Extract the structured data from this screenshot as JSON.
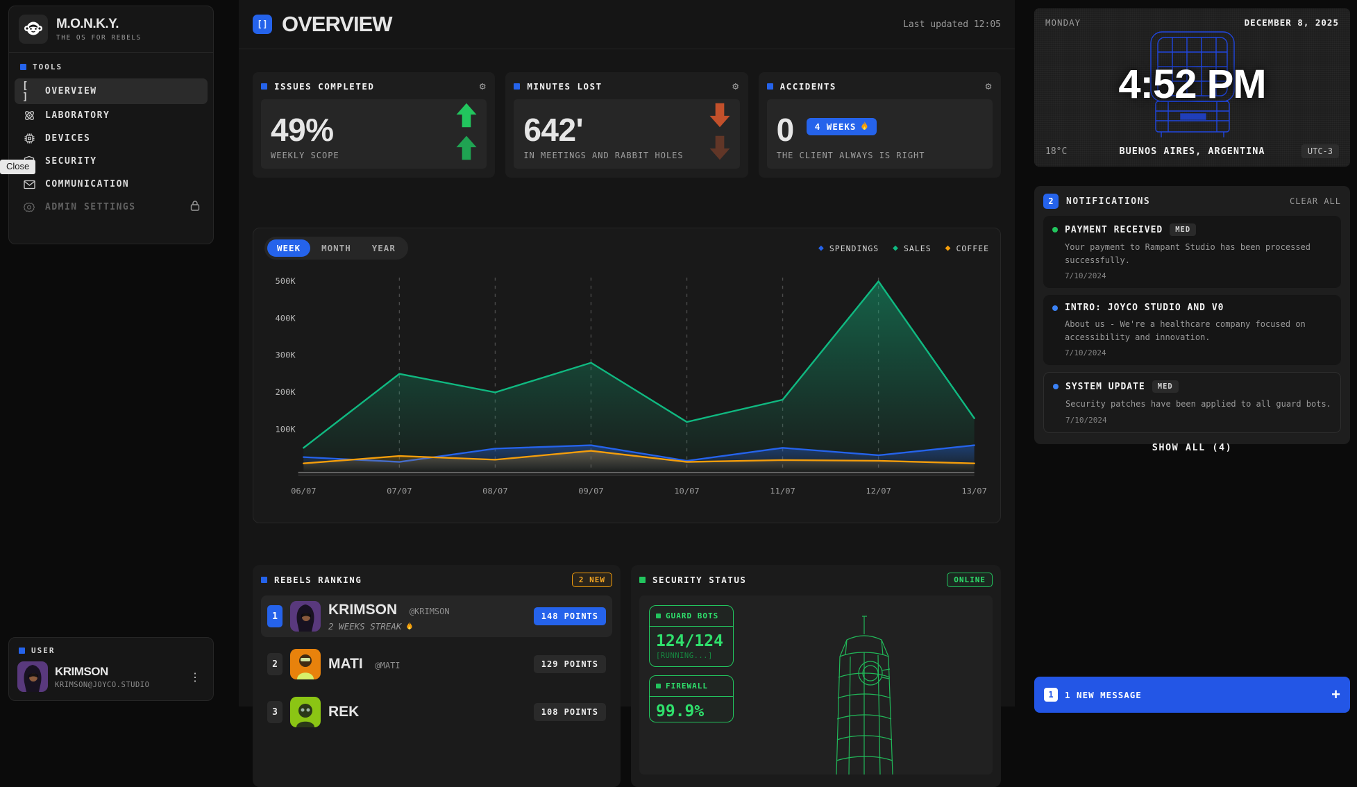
{
  "sidebar": {
    "logo": {
      "title": "M.O.N.K.Y.",
      "subtitle": "THE OS FOR REBELS"
    },
    "tools_label": "TOOLS",
    "items": [
      {
        "label": "OVERVIEW"
      },
      {
        "label": "LABORATORY"
      },
      {
        "label": "DEVICES"
      },
      {
        "label": "SECURITY"
      },
      {
        "label": "COMMUNICATION"
      },
      {
        "label": "ADMIN SETTINGS"
      }
    ],
    "tooltip": "Close",
    "user": {
      "label": "USER",
      "name": "KRIMSON",
      "email": "KRIMSON@JOYCO.STUDIO"
    }
  },
  "header": {
    "title": "OVERVIEW",
    "icon": "[]",
    "last_updated": "Last updated 12:05"
  },
  "stats": [
    {
      "title": "ISSUES COMPLETED",
      "value": "49%",
      "subtitle": "WEEKLY SCOPE"
    },
    {
      "title": "MINUTES LOST",
      "value": "642'",
      "subtitle": "IN MEETINGS AND RABBIT HOLES"
    },
    {
      "title": "ACCIDENTS",
      "value": "0",
      "badge": "4 WEEKS",
      "subtitle": "THE CLIENT ALWAYS IS RIGHT"
    }
  ],
  "chart": {
    "tabs": [
      "WEEK",
      "MONTH",
      "YEAR"
    ],
    "active_tab": "WEEK",
    "legend": [
      {
        "label": "SPENDINGS",
        "color": "#2563eb"
      },
      {
        "label": "SALES",
        "color": "#10b981"
      },
      {
        "label": "COFFEE",
        "color": "#f59e0b"
      }
    ]
  },
  "chart_data": {
    "type": "area",
    "title": "",
    "x": [
      "06/07",
      "07/07",
      "08/07",
      "09/07",
      "10/07",
      "11/07",
      "12/07",
      "13/07"
    ],
    "series": [
      {
        "name": "SALES",
        "color": "#10b981",
        "area_opacity": 0.45,
        "values": [
          50000,
          250000,
          200000,
          280000,
          120000,
          180000,
          500000,
          130000
        ]
      },
      {
        "name": "SPENDINGS",
        "color": "#2563eb",
        "area_opacity": 0.4,
        "values": [
          25000,
          12000,
          48000,
          57000,
          15000,
          50000,
          30000,
          57000
        ]
      },
      {
        "name": "COFFEE",
        "color": "#f59e0b",
        "area_opacity": 0.3,
        "values": [
          8000,
          28000,
          18000,
          42000,
          12000,
          17000,
          15000,
          8000
        ]
      }
    ],
    "ylim": [
      0,
      500000
    ],
    "yticks": [
      {
        "label": "100K",
        "value": 100000
      },
      {
        "label": "200K",
        "value": 200000
      },
      {
        "label": "300K",
        "value": 300000
      },
      {
        "label": "400K",
        "value": 400000
      },
      {
        "label": "500K",
        "value": 500000
      }
    ],
    "grid": "vertical-dashed",
    "legend_position": "top-right"
  },
  "ranking": {
    "title": "REBELS RANKING",
    "badge": "2 NEW",
    "rows": [
      {
        "rank": "1",
        "name": "KRIMSON",
        "handle": "@KRIMSON",
        "streak": "2 WEEKS STREAK",
        "points": "148 POINTS",
        "avatar_color": "#59397d"
      },
      {
        "rank": "2",
        "name": "MATI",
        "handle": "@MATI",
        "points": "129 POINTS",
        "avatar_color": "#e8820c"
      },
      {
        "rank": "3",
        "name": "REK",
        "points": "108 POINTS",
        "avatar_color": "#8bc514"
      }
    ]
  },
  "security": {
    "title": "SECURITY STATUS",
    "badge": "ONLINE",
    "panels": [
      {
        "label": "GUARD BOTS",
        "value": "124/124",
        "note": "[RUNNING...]"
      },
      {
        "label": "FIREWALL",
        "value": "99.9%",
        "note": ""
      }
    ]
  },
  "clock": {
    "day": "MONDAY",
    "date": "DECEMBER 8, 2025",
    "time": "4:52 PM",
    "temp": "18°C",
    "location": "BUENOS AIRES, ARGENTINA",
    "utc": "UTC-3"
  },
  "notifications": {
    "count": "2",
    "title": "NOTIFICATIONS",
    "clear_all": "CLEAR ALL",
    "items": [
      {
        "title": "PAYMENT RECEIVED",
        "priority": "MED",
        "dot_color": "#22c55e",
        "body": "Your payment to Rampant Studio has been processed successfully.",
        "date": "7/10/2024"
      },
      {
        "title": "INTRO: JOYCO STUDIO AND V0",
        "dot_color": "#3b82f6",
        "body": "About us - We're a healthcare company focused on accessibility and innovation.",
        "date": "7/10/2024"
      },
      {
        "title": "SYSTEM UPDATE",
        "priority": "MED",
        "dot_color": "#3b82f6",
        "body": "Security patches have been applied to all guard bots.",
        "date": "7/10/2024"
      }
    ],
    "show_all": "SHOW ALL (4)"
  },
  "message_bar": {
    "count": "1",
    "label": "1 NEW MESSAGE"
  }
}
